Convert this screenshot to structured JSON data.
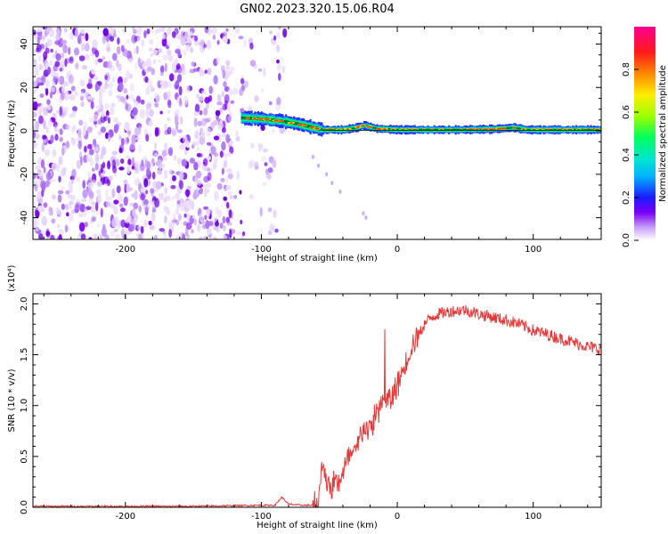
{
  "title": "GN02.2023.320.15.06.R04",
  "chart_data": [
    {
      "type": "heatmap",
      "xlabel": "Height of straight line (km)",
      "ylabel": "Frequency (Hz)",
      "xlim": [
        -268,
        150
      ],
      "ylim": [
        -50,
        48
      ],
      "xticks": [
        -200,
        -100,
        0,
        100
      ],
      "yticks": [
        -40,
        -20,
        0,
        20,
        40
      ],
      "colorbar": {
        "label": "Normalized spectral amplitude",
        "range": [
          0,
          1
        ],
        "ticks": [
          "0.0",
          "0.2",
          "0.4",
          "0.6",
          "0.8"
        ]
      },
      "trace": {
        "x": [
          -115,
          -100,
          -85,
          -72,
          -62,
          -55,
          -40,
          -30,
          -25,
          -15,
          0,
          20,
          45,
          70,
          85,
          95,
          120,
          150
        ],
        "y": [
          6,
          5.5,
          4.5,
          3,
          1.5,
          0.5,
          0.5,
          1.5,
          2.5,
          1,
          0.5,
          0.5,
          0.5,
          0.8,
          1.5,
          0.5,
          0.5,
          0.5
        ]
      },
      "noise_region_x": [
        -268,
        -82
      ]
    },
    {
      "type": "line",
      "xlabel": "Height of straight line (km)",
      "ylabel": "SNR (10 * v/v)",
      "y_multiplier": "(x10⁴)",
      "xlim": [
        -268,
        150
      ],
      "ylim": [
        0,
        2.1
      ],
      "xticks": [
        -200,
        -100,
        0,
        100
      ],
      "yticks": [
        "0.0",
        "0.5",
        "1.0",
        "1.5",
        "2.0"
      ],
      "series": [
        {
          "color": "#e8393a",
          "x": [
            -268,
            -200,
            -150,
            -100,
            -90,
            -85,
            -80,
            -70,
            -62,
            -58,
            -55,
            -50,
            -45,
            -40,
            -35,
            -30,
            -25,
            -20,
            -15,
            -10,
            -5,
            0,
            5,
            10,
            15,
            20,
            25,
            30,
            40,
            50,
            60,
            70,
            80,
            90,
            100,
            110,
            120,
            130,
            140,
            150
          ],
          "y": [
            0.01,
            0.01,
            0.01,
            0.02,
            0.02,
            0.1,
            0.03,
            0.02,
            0.02,
            0.06,
            0.45,
            0.18,
            0.25,
            0.32,
            0.5,
            0.55,
            0.8,
            0.75,
            0.95,
            1.05,
            1.05,
            1.2,
            1.38,
            1.58,
            1.68,
            1.8,
            1.87,
            1.9,
            1.93,
            1.94,
            1.9,
            1.87,
            1.84,
            1.8,
            1.74,
            1.7,
            1.66,
            1.62,
            1.58,
            1.55
          ]
        }
      ]
    }
  ]
}
